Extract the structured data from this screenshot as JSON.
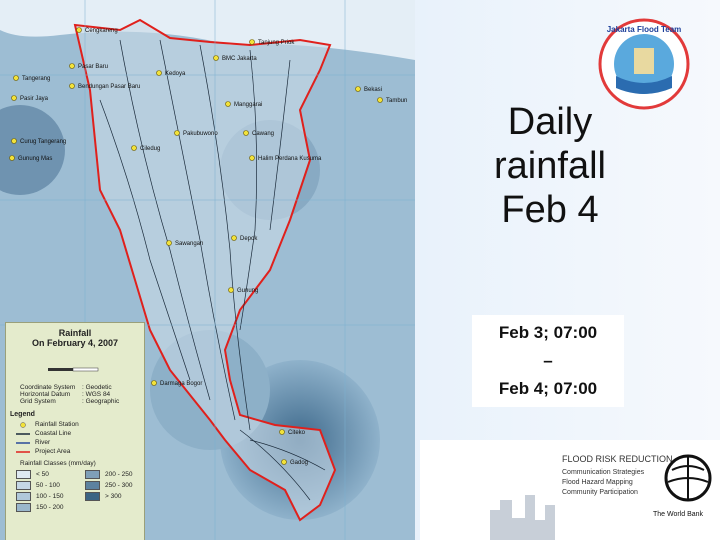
{
  "title_lines": [
    "Daily",
    "rainfall",
    "Feb 4"
  ],
  "period_lines": [
    "Feb 3; 07:00",
    "–",
    "Feb 4; 07:00"
  ],
  "map": {
    "stations": [
      "Cengkareng",
      "Tanjung Priok",
      "Pasar Baru",
      "Tangerang",
      "Kedoya",
      "BMC Jakarta",
      "Bekasi",
      "Pasir Jaya",
      "Bendungan Pasar Baru",
      "Tambun",
      "Manggarai",
      "Curug Tangerang",
      "Pakubuwono",
      "Cawang",
      "Ciledug",
      "Gunung Mas",
      "Halim Perdana Kusuma",
      "Sawangan",
      "Depok",
      "Gunung",
      "Darmaga Bogor",
      "Citeko",
      "Gadog"
    ]
  },
  "legend": {
    "title": "Rainfall",
    "subtitle": "On February 4, 2007",
    "coordinates": [
      [
        "Coordinate System",
        ": Geodetic"
      ],
      [
        "Horizontal Datum",
        ": WGS 84"
      ],
      [
        "Grid System",
        ": Geographic"
      ]
    ],
    "legend_heading": "Legend",
    "items": [
      "Rainfall Station",
      "Coastal Line",
      "River",
      "Project Area"
    ],
    "classes_heading": "Rainfall Classes (mm/day)",
    "classes": [
      {
        "label": "< 50",
        "color": "#dfe9f1"
      },
      {
        "label": "200 - 250",
        "color": "#7f9fb7"
      },
      {
        "label": "50 - 100",
        "color": "#c5d7e5"
      },
      {
        "label": "250 - 300",
        "color": "#5d829f"
      },
      {
        "label": "100 - 150",
        "color": "#b0c8da"
      },
      {
        "label": "> 300",
        "color": "#3b6484"
      },
      {
        "label": "150 - 200",
        "color": "#9ab7cc"
      }
    ]
  },
  "logos": {
    "jft": "Jakarta Flood Team",
    "frr": {
      "title": "FLOOD RISK REDUCTION",
      "lines": [
        "Communication Strategies",
        "Flood Hazard Mapping",
        "Community Participation"
      ]
    },
    "world_bank": "The World Bank"
  }
}
